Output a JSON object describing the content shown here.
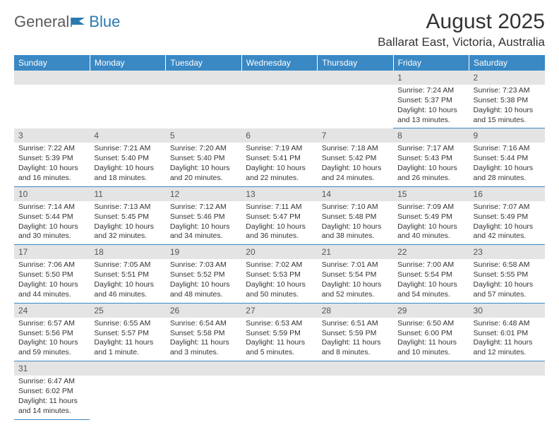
{
  "logo": {
    "general": "General",
    "blue": "Blue"
  },
  "title": "August 2025",
  "location": "Ballarat East, Victoria, Australia",
  "colors": {
    "header_bg": "#3a88c4",
    "header_text": "#ffffff",
    "daynum_bg": "#e4e4e4",
    "rule": "#3a88c4",
    "body_text": "#333333",
    "logo_gray": "#5a5a5a",
    "logo_blue": "#2a7ab0"
  },
  "weekdays": [
    "Sunday",
    "Monday",
    "Tuesday",
    "Wednesday",
    "Thursday",
    "Friday",
    "Saturday"
  ],
  "weeks": [
    [
      null,
      null,
      null,
      null,
      null,
      {
        "n": "1",
        "sunrise": "Sunrise: 7:24 AM",
        "sunset": "Sunset: 5:37 PM",
        "daylight": "Daylight: 10 hours and 13 minutes."
      },
      {
        "n": "2",
        "sunrise": "Sunrise: 7:23 AM",
        "sunset": "Sunset: 5:38 PM",
        "daylight": "Daylight: 10 hours and 15 minutes."
      }
    ],
    [
      {
        "n": "3",
        "sunrise": "Sunrise: 7:22 AM",
        "sunset": "Sunset: 5:39 PM",
        "daylight": "Daylight: 10 hours and 16 minutes."
      },
      {
        "n": "4",
        "sunrise": "Sunrise: 7:21 AM",
        "sunset": "Sunset: 5:40 PM",
        "daylight": "Daylight: 10 hours and 18 minutes."
      },
      {
        "n": "5",
        "sunrise": "Sunrise: 7:20 AM",
        "sunset": "Sunset: 5:40 PM",
        "daylight": "Daylight: 10 hours and 20 minutes."
      },
      {
        "n": "6",
        "sunrise": "Sunrise: 7:19 AM",
        "sunset": "Sunset: 5:41 PM",
        "daylight": "Daylight: 10 hours and 22 minutes."
      },
      {
        "n": "7",
        "sunrise": "Sunrise: 7:18 AM",
        "sunset": "Sunset: 5:42 PM",
        "daylight": "Daylight: 10 hours and 24 minutes."
      },
      {
        "n": "8",
        "sunrise": "Sunrise: 7:17 AM",
        "sunset": "Sunset: 5:43 PM",
        "daylight": "Daylight: 10 hours and 26 minutes."
      },
      {
        "n": "9",
        "sunrise": "Sunrise: 7:16 AM",
        "sunset": "Sunset: 5:44 PM",
        "daylight": "Daylight: 10 hours and 28 minutes."
      }
    ],
    [
      {
        "n": "10",
        "sunrise": "Sunrise: 7:14 AM",
        "sunset": "Sunset: 5:44 PM",
        "daylight": "Daylight: 10 hours and 30 minutes."
      },
      {
        "n": "11",
        "sunrise": "Sunrise: 7:13 AM",
        "sunset": "Sunset: 5:45 PM",
        "daylight": "Daylight: 10 hours and 32 minutes."
      },
      {
        "n": "12",
        "sunrise": "Sunrise: 7:12 AM",
        "sunset": "Sunset: 5:46 PM",
        "daylight": "Daylight: 10 hours and 34 minutes."
      },
      {
        "n": "13",
        "sunrise": "Sunrise: 7:11 AM",
        "sunset": "Sunset: 5:47 PM",
        "daylight": "Daylight: 10 hours and 36 minutes."
      },
      {
        "n": "14",
        "sunrise": "Sunrise: 7:10 AM",
        "sunset": "Sunset: 5:48 PM",
        "daylight": "Daylight: 10 hours and 38 minutes."
      },
      {
        "n": "15",
        "sunrise": "Sunrise: 7:09 AM",
        "sunset": "Sunset: 5:49 PM",
        "daylight": "Daylight: 10 hours and 40 minutes."
      },
      {
        "n": "16",
        "sunrise": "Sunrise: 7:07 AM",
        "sunset": "Sunset: 5:49 PM",
        "daylight": "Daylight: 10 hours and 42 minutes."
      }
    ],
    [
      {
        "n": "17",
        "sunrise": "Sunrise: 7:06 AM",
        "sunset": "Sunset: 5:50 PM",
        "daylight": "Daylight: 10 hours and 44 minutes."
      },
      {
        "n": "18",
        "sunrise": "Sunrise: 7:05 AM",
        "sunset": "Sunset: 5:51 PM",
        "daylight": "Daylight: 10 hours and 46 minutes."
      },
      {
        "n": "19",
        "sunrise": "Sunrise: 7:03 AM",
        "sunset": "Sunset: 5:52 PM",
        "daylight": "Daylight: 10 hours and 48 minutes."
      },
      {
        "n": "20",
        "sunrise": "Sunrise: 7:02 AM",
        "sunset": "Sunset: 5:53 PM",
        "daylight": "Daylight: 10 hours and 50 minutes."
      },
      {
        "n": "21",
        "sunrise": "Sunrise: 7:01 AM",
        "sunset": "Sunset: 5:54 PM",
        "daylight": "Daylight: 10 hours and 52 minutes."
      },
      {
        "n": "22",
        "sunrise": "Sunrise: 7:00 AM",
        "sunset": "Sunset: 5:54 PM",
        "daylight": "Daylight: 10 hours and 54 minutes."
      },
      {
        "n": "23",
        "sunrise": "Sunrise: 6:58 AM",
        "sunset": "Sunset: 5:55 PM",
        "daylight": "Daylight: 10 hours and 57 minutes."
      }
    ],
    [
      {
        "n": "24",
        "sunrise": "Sunrise: 6:57 AM",
        "sunset": "Sunset: 5:56 PM",
        "daylight": "Daylight: 10 hours and 59 minutes."
      },
      {
        "n": "25",
        "sunrise": "Sunrise: 6:55 AM",
        "sunset": "Sunset: 5:57 PM",
        "daylight": "Daylight: 11 hours and 1 minute."
      },
      {
        "n": "26",
        "sunrise": "Sunrise: 6:54 AM",
        "sunset": "Sunset: 5:58 PM",
        "daylight": "Daylight: 11 hours and 3 minutes."
      },
      {
        "n": "27",
        "sunrise": "Sunrise: 6:53 AM",
        "sunset": "Sunset: 5:59 PM",
        "daylight": "Daylight: 11 hours and 5 minutes."
      },
      {
        "n": "28",
        "sunrise": "Sunrise: 6:51 AM",
        "sunset": "Sunset: 5:59 PM",
        "daylight": "Daylight: 11 hours and 8 minutes."
      },
      {
        "n": "29",
        "sunrise": "Sunrise: 6:50 AM",
        "sunset": "Sunset: 6:00 PM",
        "daylight": "Daylight: 11 hours and 10 minutes."
      },
      {
        "n": "30",
        "sunrise": "Sunrise: 6:48 AM",
        "sunset": "Sunset: 6:01 PM",
        "daylight": "Daylight: 11 hours and 12 minutes."
      }
    ],
    [
      {
        "n": "31",
        "sunrise": "Sunrise: 6:47 AM",
        "sunset": "Sunset: 6:02 PM",
        "daylight": "Daylight: 11 hours and 14 minutes."
      },
      null,
      null,
      null,
      null,
      null,
      null
    ]
  ]
}
